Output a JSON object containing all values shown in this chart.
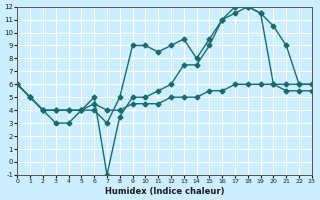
{
  "xlabel": "Humidex (Indice chaleur)",
  "ylabel": "",
  "xlim": [
    0,
    23
  ],
  "ylim": [
    -1,
    12
  ],
  "xticks": [
    0,
    1,
    2,
    3,
    4,
    5,
    6,
    7,
    8,
    9,
    10,
    11,
    12,
    13,
    14,
    15,
    16,
    17,
    18,
    19,
    20,
    21,
    22,
    23
  ],
  "yticks": [
    -1,
    0,
    1,
    2,
    3,
    4,
    5,
    6,
    7,
    8,
    9,
    10,
    11,
    12
  ],
  "bg_color": "#cceeff",
  "line_color": "#1a6b6b",
  "grid_color": "#ffffff",
  "line1_x": [
    0,
    1,
    2,
    3,
    4,
    5,
    6,
    7,
    8,
    9,
    10,
    11,
    12,
    13,
    14,
    15,
    16,
    17,
    18,
    19,
    20,
    21,
    22,
    23
  ],
  "line1_y": [
    6,
    5,
    4,
    4,
    4,
    4,
    4,
    3,
    5,
    9,
    9,
    8.5,
    9,
    9.5,
    8,
    9.5,
    11,
    12,
    12,
    11.5,
    10.5,
    9,
    6,
    6
  ],
  "line2_x": [
    0,
    1,
    2,
    3,
    4,
    5,
    6,
    7,
    8,
    9,
    10,
    11,
    12,
    13,
    14,
    15,
    16,
    17,
    18,
    19,
    20,
    21,
    22,
    23
  ],
  "line2_y": [
    6,
    5,
    4,
    3,
    3,
    4,
    5,
    -1,
    3.5,
    5,
    5,
    5.5,
    6,
    7.5,
    7.5,
    9,
    11,
    11.5,
    12,
    11.5,
    6,
    5.5,
    5.5,
    5.5
  ],
  "line3_x": [
    0,
    1,
    2,
    3,
    4,
    5,
    6,
    7,
    8,
    9,
    10,
    11,
    12,
    13,
    14,
    15,
    16,
    17,
    18,
    19,
    20,
    21,
    22,
    23
  ],
  "line3_y": [
    6,
    5,
    4,
    4,
    4,
    4,
    4.5,
    4,
    4,
    4.5,
    4.5,
    4.5,
    5,
    5,
    5,
    5.5,
    5.5,
    6,
    6,
    6,
    6,
    6,
    6,
    6
  ]
}
